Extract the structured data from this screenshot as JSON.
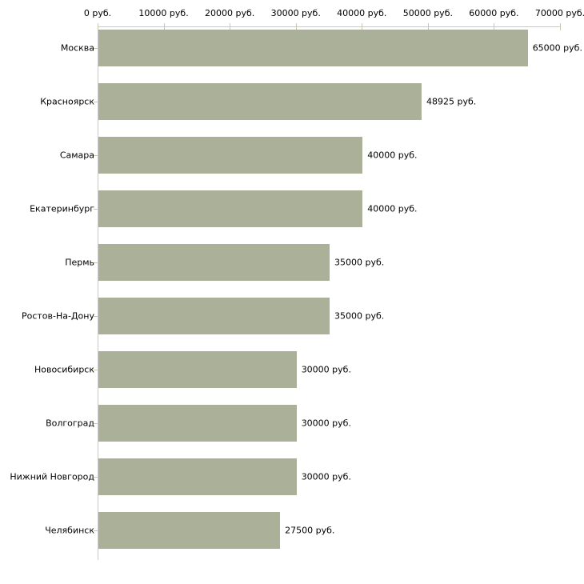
{
  "chart_data": {
    "type": "bar",
    "orientation": "horizontal",
    "title": "",
    "xlabel": "",
    "ylabel": "",
    "grid": false,
    "legend": false,
    "xlim": [
      0,
      70000
    ],
    "x_axis": {
      "position": "top",
      "tick_values": [
        0,
        10000,
        20000,
        30000,
        40000,
        50000,
        60000,
        70000
      ],
      "tick_labels": [
        "0 руб.",
        "10000 руб.",
        "20000 руб.",
        "30000 руб.",
        "40000 руб.",
        "50000 руб.",
        "60000 руб.",
        "70000 руб."
      ]
    },
    "categories": [
      "Москва",
      "Красноярск",
      "Самара",
      "Екатеринбург",
      "Пермь",
      "Ростов-На-Дону",
      "Новосибирск",
      "Волгоград",
      "Нижний Новгород",
      "Челябинск"
    ],
    "values": [
      65000,
      48925,
      40000,
      40000,
      35000,
      35000,
      30000,
      30000,
      30000,
      27500
    ],
    "value_labels": [
      "65000 руб.",
      "48925 руб.",
      "40000 руб.",
      "40000 руб.",
      "35000 руб.",
      "35000 руб.",
      "30000 руб.",
      "30000 руб.",
      "30000 руб.",
      "27500 руб."
    ]
  },
  "colors": {
    "bar": "#abb198",
    "axis_line": "#c9c9c9",
    "tick": "#c8c8aa",
    "text": "#000000",
    "background": "#ffffff"
  }
}
